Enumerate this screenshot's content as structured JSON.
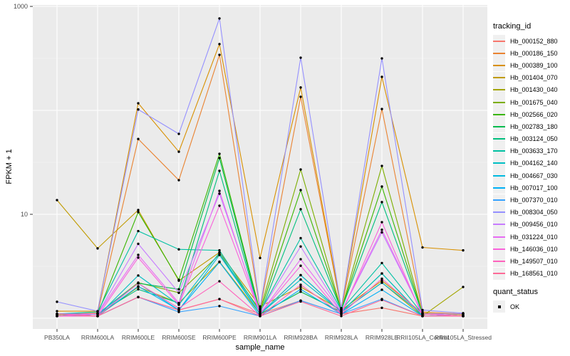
{
  "chart_data": {
    "type": "line",
    "title": "",
    "xlabel": "sample_name",
    "ylabel": "FPKM + 1",
    "y_scale": "log10",
    "ylim": [
      1,
      1000
    ],
    "y_ticks": [
      {
        "value": 1000,
        "label": "1000"
      },
      {
        "value": 10,
        "label": "10"
      }
    ],
    "grid": "white major gridlines (1,10,100,1000) with faint half-decade minors on gray ggplot2 panel",
    "legend_position": "right",
    "point_color": "#000000",
    "panel_color": "#EBEBEB",
    "legends": {
      "color": {
        "title": "tracking_id"
      },
      "shape": {
        "title": "quant_status",
        "items": [
          {
            "label": "OK"
          }
        ]
      }
    },
    "categories": [
      "PB350LA",
      "RRIM600LA",
      "RRIM600LE",
      "RRIM600SE",
      "RRIM600PE",
      "RRIM901LA",
      "RRIM928BA",
      "RRIM928LA",
      "RRIM928LE",
      "RRII105LA_Control",
      "RRII105LA_Stressed"
    ],
    "series": [
      {
        "name": "Hb_000152_880",
        "color": "#F8766D",
        "values": [
          1.05,
          1.05,
          1.6,
          1.2,
          1.53,
          1.1,
          1.48,
          1.1,
          1.26,
          1.05,
          1.05
        ]
      },
      {
        "name": "Hb_000186_150",
        "color": "#EA8331",
        "values": [
          1.1,
          1.12,
          53,
          21.3,
          342,
          1.22,
          135,
          1.22,
          103,
          1.15,
          1.1
        ]
      },
      {
        "name": "Hb_000389_100",
        "color": "#D89000",
        "values": [
          1.17,
          1.17,
          117,
          40,
          434,
          3.8,
          166,
          1.25,
          210,
          4.8,
          4.5
        ]
      },
      {
        "name": "Hb_001404_070",
        "color": "#C09B00",
        "values": [
          13.7,
          4.7,
          11.0,
          2.3,
          4.3,
          1.3,
          2.0,
          1.2,
          2.3,
          1.12,
          1.08
        ]
      },
      {
        "name": "Hb_001430_040",
        "color": "#A3A500",
        "values": [
          1.05,
          1.05,
          2.0,
          1.4,
          3.5,
          1.1,
          2.6,
          1.15,
          2.2,
          1.05,
          2.0
        ]
      },
      {
        "name": "Hb_001675_040",
        "color": "#7CAE00",
        "values": [
          1.08,
          1.1,
          2.2,
          1.76,
          4.1,
          1.2,
          27,
          1.2,
          29.2,
          1.1,
          1.1
        ]
      },
      {
        "name": "Hb_002566_020",
        "color": "#39B600",
        "values": [
          1.05,
          1.1,
          10.5,
          2.34,
          38.2,
          1.15,
          17.1,
          1.2,
          18.5,
          1.1,
          1.05
        ]
      },
      {
        "name": "Hb_002783_180",
        "color": "#00BB4E",
        "values": [
          1.1,
          1.05,
          2.17,
          1.9,
          34.8,
          1.1,
          1.8,
          1.15,
          2.7,
          1.05,
          1.05
        ]
      },
      {
        "name": "Hb_003124_050",
        "color": "#00BF7D",
        "values": [
          1.05,
          1.1,
          1.9,
          1.4,
          26.2,
          1.1,
          11.2,
          1.2,
          13.1,
          1.1,
          1.05
        ]
      },
      {
        "name": "Hb_003633_170",
        "color": "#00C1A3",
        "values": [
          1.1,
          1.15,
          6.9,
          4.6,
          4.5,
          1.15,
          5.9,
          1.2,
          3.4,
          1.1,
          1.1
        ]
      },
      {
        "name": "Hb_004162_140",
        "color": "#00BFC4",
        "values": [
          1.05,
          1.05,
          2.58,
          1.35,
          4.26,
          1.1,
          2.36,
          1.15,
          2.7,
          1.05,
          1.05
        ]
      },
      {
        "name": "Hb_004667_030",
        "color": "#00BAE0",
        "values": [
          1.05,
          1.1,
          2.17,
          1.2,
          4.06,
          1.1,
          2.6,
          1.15,
          2.2,
          1.1,
          1.05
        ]
      },
      {
        "name": "Hb_007017_100",
        "color": "#00B0F6",
        "values": [
          1.1,
          1.05,
          2.03,
          1.2,
          3.47,
          1.05,
          1.9,
          1.1,
          1.88,
          1.05,
          1.05
        ]
      },
      {
        "name": "Hb_007370_010",
        "color": "#35A2FF",
        "values": [
          1.05,
          1.05,
          1.6,
          1.15,
          1.31,
          1.05,
          1.48,
          1.1,
          1.53,
          1.05,
          1.05
        ]
      },
      {
        "name": "Hb_008304_050",
        "color": "#9590FF",
        "values": [
          1.44,
          1.17,
          102,
          59.4,
          766,
          1.25,
          321,
          1.25,
          316,
          1.2,
          1.12
        ]
      },
      {
        "name": "Hb_009456_010",
        "color": "#C77CFF",
        "values": [
          1.1,
          1.1,
          5.2,
          1.76,
          15.8,
          1.15,
          4.9,
          1.15,
          6.7,
          1.1,
          1.1
        ]
      },
      {
        "name": "Hb_031224_010",
        "color": "#E76BF3",
        "values": [
          1.05,
          1.1,
          4.07,
          1.4,
          16.8,
          1.1,
          3.7,
          1.15,
          7.1,
          1.1,
          1.05
        ]
      },
      {
        "name": "Hb_146036_010",
        "color": "#FA62DB",
        "values": [
          1.1,
          1.05,
          3.83,
          1.35,
          12.1,
          1.1,
          3.2,
          1.1,
          8.4,
          1.05,
          1.05
        ]
      },
      {
        "name": "Hb_149507_010",
        "color": "#FF62BC",
        "values": [
          1.05,
          1.05,
          2.17,
          1.25,
          2.27,
          1.05,
          2.1,
          1.1,
          2.4,
          1.1,
          1.05
        ]
      },
      {
        "name": "Hb_168561_010",
        "color": "#FF6A98",
        "values": [
          1.1,
          1.05,
          1.6,
          1.2,
          1.53,
          1.05,
          1.45,
          1.05,
          1.5,
          1.05,
          1.05
        ]
      }
    ]
  }
}
